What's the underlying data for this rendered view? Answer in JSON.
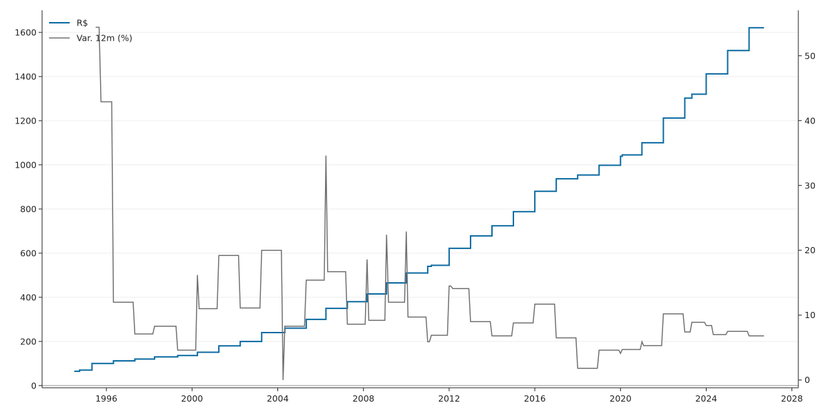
{
  "chart_data": {
    "type": "line",
    "title": "",
    "xlabel": "",
    "ylabel": "",
    "y2label": "",
    "xlim": [
      1993.0,
      2028.3
    ],
    "ylim": [
      -10,
      1700
    ],
    "y2lim": [
      -1.2,
      57.0
    ],
    "xticks": [
      1996,
      2000,
      2004,
      2008,
      2012,
      2016,
      2020,
      2024,
      2028
    ],
    "yticks": [
      0,
      200,
      400,
      600,
      800,
      1000,
      1200,
      1400,
      1600
    ],
    "y2ticks": [
      0,
      10,
      20,
      30,
      40,
      50
    ],
    "grid": "horizontal-light",
    "legend": {
      "placement": "top-left",
      "entries": [
        "R$",
        "Var. 12m (%)"
      ]
    },
    "colors": {
      "wage": "#0a6aa1",
      "change": "#707070",
      "grid": "#eeeeee",
      "axis": "#222222"
    },
    "series": [
      {
        "name": "R$",
        "axis": "left",
        "step": true,
        "points": [
          [
            1994.5,
            64.79
          ],
          [
            1994.75,
            70
          ],
          [
            1995.33,
            100
          ],
          [
            1996.33,
            112
          ],
          [
            1997.33,
            120
          ],
          [
            1998.25,
            130
          ],
          [
            1999.33,
            136
          ],
          [
            2000.25,
            151
          ],
          [
            2001.25,
            180
          ],
          [
            2002.25,
            200
          ],
          [
            2003.25,
            240
          ],
          [
            2004.33,
            260
          ],
          [
            2005.33,
            300
          ],
          [
            2006.25,
            350
          ],
          [
            2007.25,
            380
          ],
          [
            2008.17,
            415
          ],
          [
            2009.08,
            465
          ],
          [
            2010.0,
            510
          ],
          [
            2011.0,
            540
          ],
          [
            2011.17,
            545
          ],
          [
            2012.0,
            622
          ],
          [
            2013.0,
            678
          ],
          [
            2014.0,
            724
          ],
          [
            2015.0,
            788
          ],
          [
            2016.0,
            880
          ],
          [
            2017.0,
            937
          ],
          [
            2018.0,
            954
          ],
          [
            2019.0,
            998
          ],
          [
            2020.0,
            1039
          ],
          [
            2020.08,
            1045
          ],
          [
            2021.0,
            1100
          ],
          [
            2022.0,
            1212
          ],
          [
            2023.0,
            1302
          ],
          [
            2023.33,
            1320
          ],
          [
            2024.0,
            1412
          ],
          [
            2025.0,
            1518
          ],
          [
            2026.0,
            1621
          ],
          [
            2026.7,
            1621
          ]
        ]
      },
      {
        "name": "Var. 12m (%)",
        "axis": "right",
        "step": false,
        "points": [
          [
            1995.5,
            54.4
          ],
          [
            1995.66,
            54.4
          ],
          [
            1995.75,
            42.9
          ],
          [
            1996.25,
            42.9
          ],
          [
            1996.33,
            12.0
          ],
          [
            1997.25,
            12.0
          ],
          [
            1997.33,
            7.1
          ],
          [
            1998.17,
            7.1
          ],
          [
            1998.25,
            8.3
          ],
          [
            1999.25,
            8.3
          ],
          [
            1999.33,
            4.6
          ],
          [
            2000.17,
            4.6
          ],
          [
            2000.25,
            16.2
          ],
          [
            2000.33,
            11.0
          ],
          [
            2001.17,
            11.0
          ],
          [
            2001.25,
            19.2
          ],
          [
            2002.17,
            19.2
          ],
          [
            2002.25,
            11.1
          ],
          [
            2003.17,
            11.1
          ],
          [
            2003.25,
            20.0
          ],
          [
            2004.17,
            20.0
          ],
          [
            2004.25,
            0.0
          ],
          [
            2004.33,
            8.3
          ],
          [
            2005.25,
            8.3
          ],
          [
            2005.33,
            15.4
          ],
          [
            2006.17,
            15.4
          ],
          [
            2006.25,
            34.6
          ],
          [
            2006.33,
            16.7
          ],
          [
            2007.17,
            16.7
          ],
          [
            2007.25,
            8.6
          ],
          [
            2008.08,
            8.6
          ],
          [
            2008.17,
            18.6
          ],
          [
            2008.25,
            9.2
          ],
          [
            2009.0,
            9.2
          ],
          [
            2009.08,
            22.4
          ],
          [
            2009.17,
            12.0
          ],
          [
            2009.92,
            12.0
          ],
          [
            2010.0,
            22.9
          ],
          [
            2010.08,
            9.7
          ],
          [
            2010.92,
            9.7
          ],
          [
            2011.0,
            5.9
          ],
          [
            2011.08,
            5.9
          ],
          [
            2011.17,
            6.9
          ],
          [
            2011.92,
            6.9
          ],
          [
            2012.0,
            14.5
          ],
          [
            2012.08,
            14.5
          ],
          [
            2012.17,
            14.1
          ],
          [
            2012.92,
            14.1
          ],
          [
            2013.0,
            9.0
          ],
          [
            2013.92,
            9.0
          ],
          [
            2014.0,
            6.8
          ],
          [
            2014.92,
            6.8
          ],
          [
            2015.0,
            8.8
          ],
          [
            2015.92,
            8.8
          ],
          [
            2016.0,
            11.7
          ],
          [
            2016.92,
            11.7
          ],
          [
            2017.0,
            6.5
          ],
          [
            2017.92,
            6.5
          ],
          [
            2018.0,
            1.8
          ],
          [
            2018.92,
            1.8
          ],
          [
            2019.0,
            4.6
          ],
          [
            2019.92,
            4.6
          ],
          [
            2020.0,
            4.1
          ],
          [
            2020.08,
            4.7
          ],
          [
            2020.92,
            4.7
          ],
          [
            2021.0,
            5.9
          ],
          [
            2021.08,
            5.3
          ],
          [
            2021.92,
            5.3
          ],
          [
            2022.0,
            10.2
          ],
          [
            2022.92,
            10.2
          ],
          [
            2023.0,
            7.4
          ],
          [
            2023.25,
            7.4
          ],
          [
            2023.33,
            8.9
          ],
          [
            2023.92,
            8.9
          ],
          [
            2024.0,
            8.4
          ],
          [
            2024.25,
            8.4
          ],
          [
            2024.33,
            7.0
          ],
          [
            2024.92,
            7.0
          ],
          [
            2025.0,
            7.5
          ],
          [
            2025.92,
            7.5
          ],
          [
            2026.0,
            6.8
          ],
          [
            2026.7,
            6.8
          ]
        ]
      }
    ]
  }
}
